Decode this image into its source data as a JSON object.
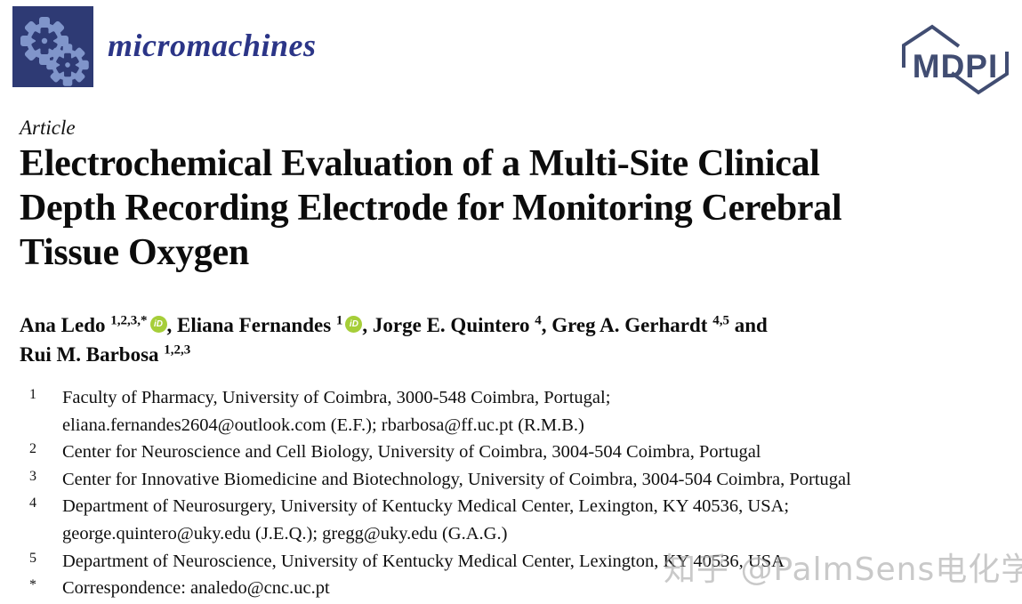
{
  "journal": {
    "wordmark": "micromachines",
    "publisher": "MDPI"
  },
  "article": {
    "type_label": "Article",
    "title_lines": [
      "Electrochemical Evaluation of a Multi-Site Clinical",
      "Depth Recording Electrode for Monitoring Cerebral",
      "Tissue Oxygen"
    ]
  },
  "authors": [
    {
      "name": "Ana Ledo",
      "sup": "1,2,3,*",
      "orcid": true,
      "sep": ", ",
      "break_after": false
    },
    {
      "name": "Eliana Fernandes",
      "sup": "1",
      "orcid": true,
      "sep": ", ",
      "break_after": false
    },
    {
      "name": "Jorge E. Quintero",
      "sup": "4",
      "orcid": false,
      "sep": ", ",
      "break_after": false
    },
    {
      "name": "Greg A. Gerhardt",
      "sup": "4,5",
      "orcid": false,
      "sep": " and",
      "break_after": true
    },
    {
      "name": "Rui M. Barbosa",
      "sup": "1,2,3",
      "orcid": false,
      "sep": "",
      "break_after": false
    }
  ],
  "orcid_icon_label": "iD",
  "affiliations": [
    {
      "marker": "1",
      "lines": [
        "Faculty of Pharmacy, University of Coimbra, 3000-548 Coimbra, Portugal;",
        "eliana.fernandes2604@outlook.com (E.F.); rbarbosa@ff.uc.pt (R.M.B.)"
      ]
    },
    {
      "marker": "2",
      "lines": [
        "Center for Neuroscience and Cell Biology, University of Coimbra, 3004-504 Coimbra, Portugal"
      ]
    },
    {
      "marker": "3",
      "lines": [
        "Center for Innovative Biomedicine and Biotechnology, University of Coimbra, 3004-504 Coimbra, Portugal"
      ]
    },
    {
      "marker": "4",
      "lines": [
        "Department of Neurosurgery, University of Kentucky Medical Center, Lexington, KY 40536, USA;",
        "george.quintero@uky.edu (J.E.Q.); gregg@uky.edu (G.A.G.)"
      ]
    },
    {
      "marker": "5",
      "lines": [
        "Department of Neuroscience, University of Kentucky Medical Center, Lexington, KY 40536, USA"
      ]
    },
    {
      "marker": "*",
      "lines": [
        "Correspondence: analedo@cnc.uc.pt"
      ]
    }
  ],
  "watermark": "知乎 @PalmSens电化学",
  "colors": {
    "logo_square": "#2e3a74",
    "logo_gears": "#8095ca",
    "wordmark_blue": "#2b3587",
    "mdpi_navy": "#414d72",
    "orcid_green": "#a6ce39",
    "text": "#0f0f0f",
    "watermark_gray": "#a5a5a5"
  }
}
